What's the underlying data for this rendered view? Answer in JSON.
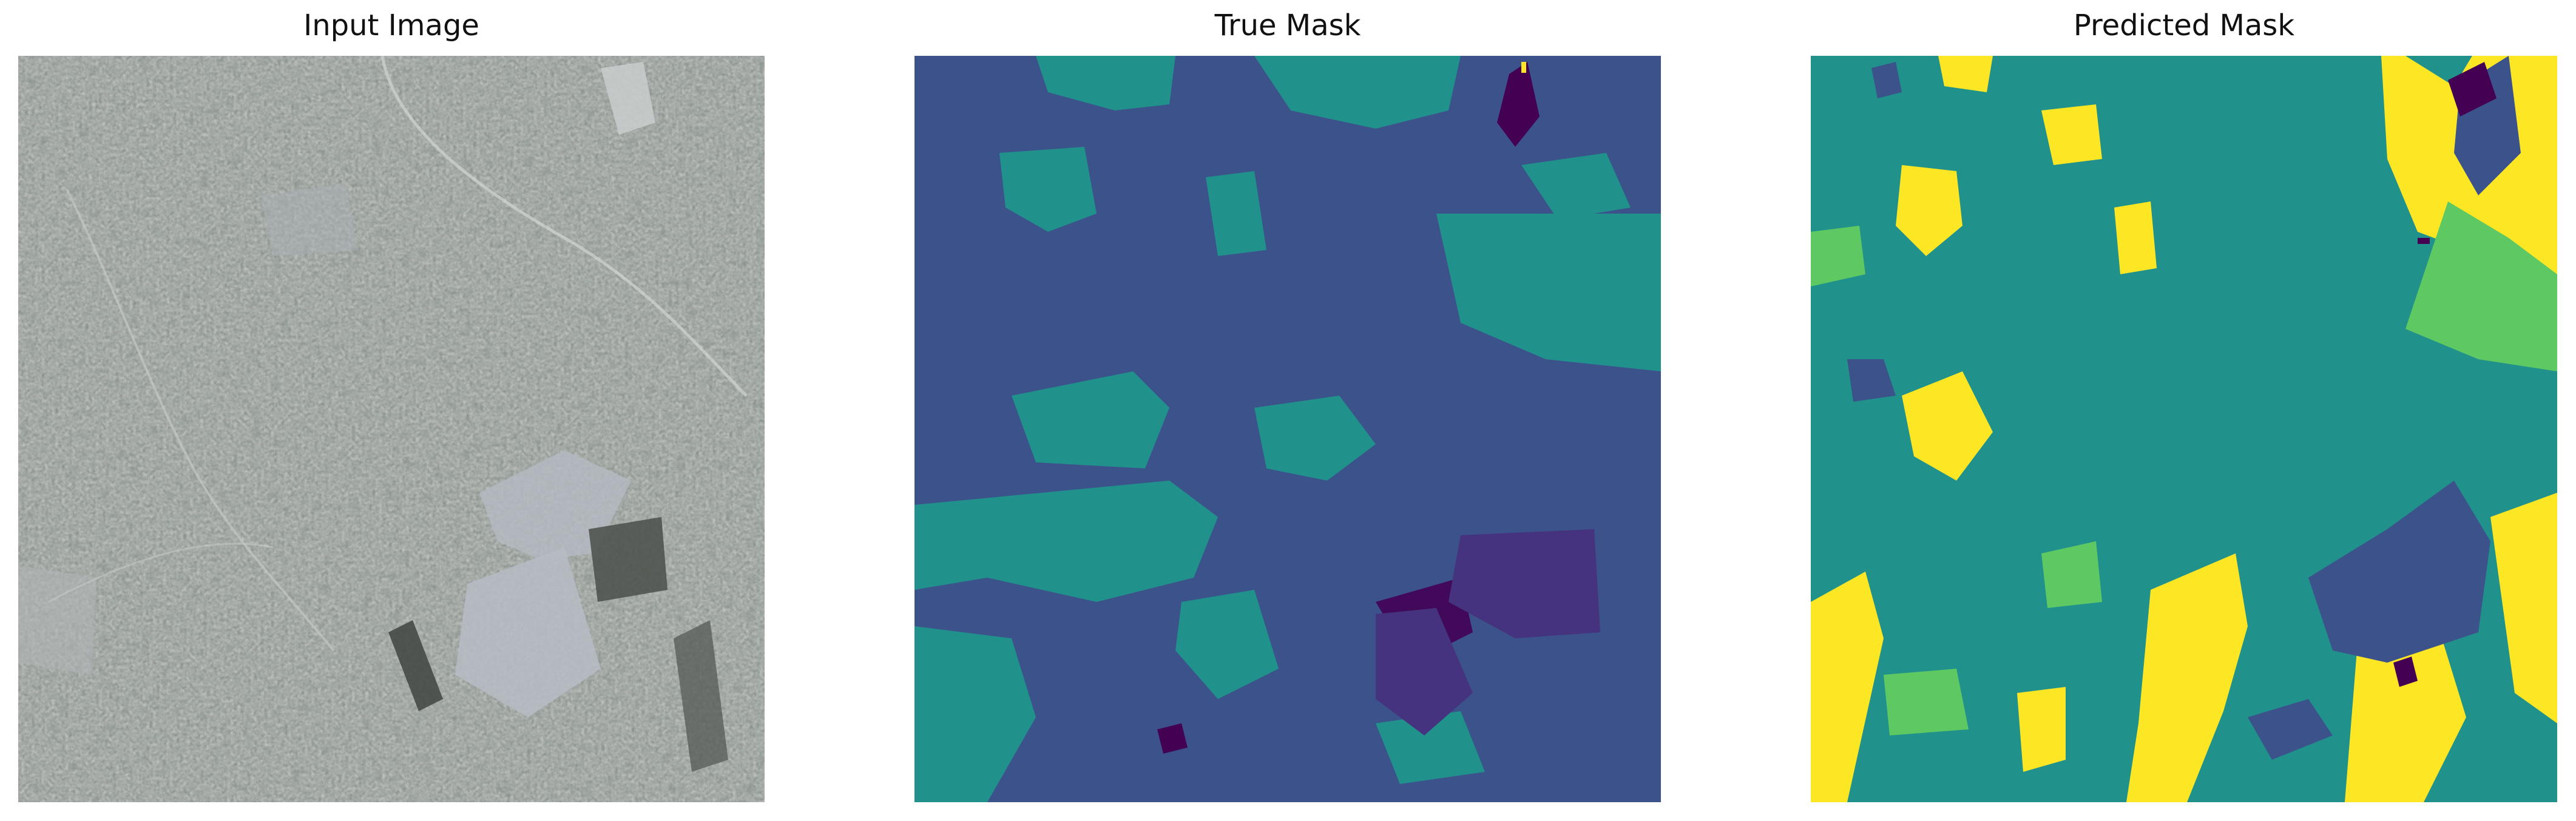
{
  "panels": [
    {
      "title": "Input Image"
    },
    {
      "title": "True Mask"
    },
    {
      "title": "Predicted Mask"
    }
  ],
  "colors": {
    "background": "#ffffff",
    "viridis_class_0": "#440154",
    "viridis_class_1": "#3b528b",
    "viridis_class_2": "#21918c",
    "viridis_class_3": "#5ec962",
    "viridis_class_4": "#fde725",
    "input_gray_base": "#8e9590"
  }
}
